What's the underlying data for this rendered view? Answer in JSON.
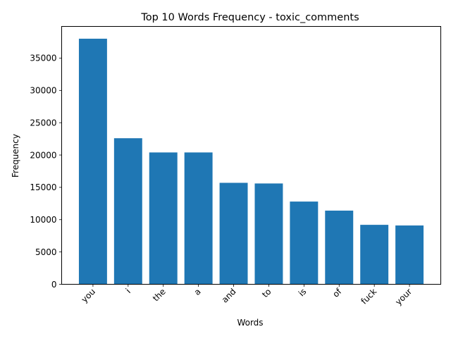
{
  "chart_data": {
    "type": "bar",
    "title": "Top 10 Words Frequency - toxic_comments",
    "xlabel": "Words",
    "ylabel": "Frequency",
    "categories": [
      "you",
      "i",
      "the",
      "a",
      "and",
      "to",
      "is",
      "of",
      "fuck",
      "your"
    ],
    "values": [
      38000,
      22600,
      20400,
      20400,
      15700,
      15600,
      12800,
      11400,
      9200,
      9100
    ],
    "ylim": [
      0,
      39900
    ],
    "yticks": [
      0,
      5000,
      10000,
      15000,
      20000,
      25000,
      30000,
      35000
    ],
    "bar_color": "#1f77b4",
    "grid": false,
    "legend": "none"
  }
}
